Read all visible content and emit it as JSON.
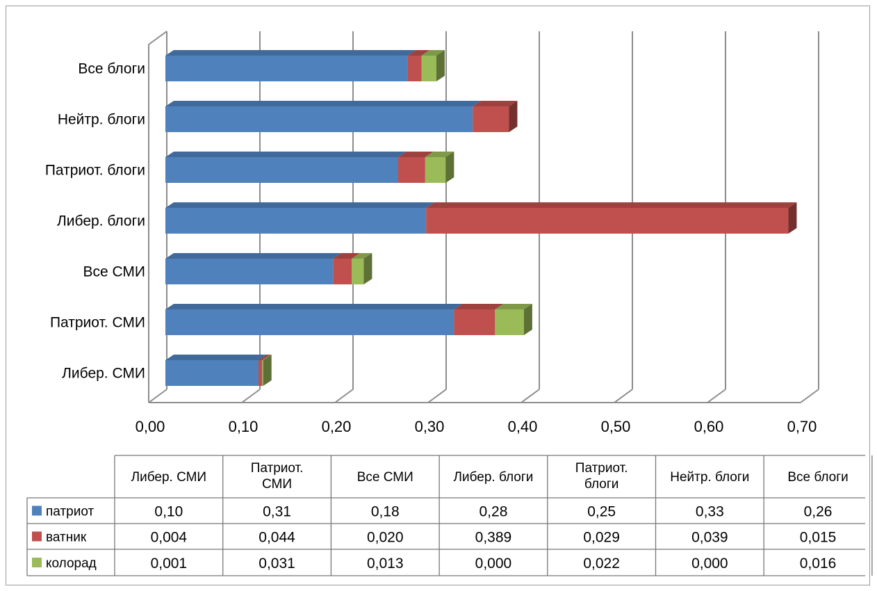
{
  "chart_data": {
    "type": "bar",
    "orientation": "horizontal",
    "stacked": true,
    "three_d": true,
    "categories": [
      "Либер. СМИ",
      "Патриот. СМИ",
      "Все СМИ",
      "Либер. блоги",
      "Патриот. блоги",
      "Нейтр. блоги",
      "Все блоги"
    ],
    "series": [
      {
        "name": "патриот",
        "color": "#4F81BD",
        "values": [
          0.1,
          0.31,
          0.18,
          0.28,
          0.25,
          0.33,
          0.26
        ],
        "labels": [
          "0,10",
          "0,31",
          "0,18",
          "0,28",
          "0,25",
          "0,33",
          "0,26"
        ]
      },
      {
        "name": "ватник",
        "color": "#C0504D",
        "values": [
          0.004,
          0.044,
          0.02,
          0.389,
          0.029,
          0.039,
          0.015
        ],
        "labels": [
          "0,004",
          "0,044",
          "0,020",
          "0,389",
          "0,029",
          "0,039",
          "0,015"
        ]
      },
      {
        "name": "колорад",
        "color": "#9BBB59",
        "values": [
          0.001,
          0.031,
          0.013,
          0.0,
          0.022,
          0.0,
          0.016
        ],
        "labels": [
          "0,001",
          "0,031",
          "0,013",
          "0,000",
          "0,022",
          "0,000",
          "0,016"
        ]
      }
    ],
    "table_headers": [
      "Либер. СМИ",
      "Патриот. СМИ",
      "Все СМИ",
      "Либер. блоги",
      "Патриот. блоги",
      "Нейтр. блоги",
      "Все блоги"
    ],
    "xlim": [
      0,
      0.7
    ],
    "x_ticks": [
      0,
      0.1,
      0.2,
      0.3,
      0.4,
      0.5,
      0.6,
      0.7
    ],
    "x_tick_labels": [
      "0,00",
      "0,10",
      "0,20",
      "0,30",
      "0,40",
      "0,50",
      "0,60",
      "0,70"
    ],
    "gridlines": true,
    "legend": "data-table"
  }
}
